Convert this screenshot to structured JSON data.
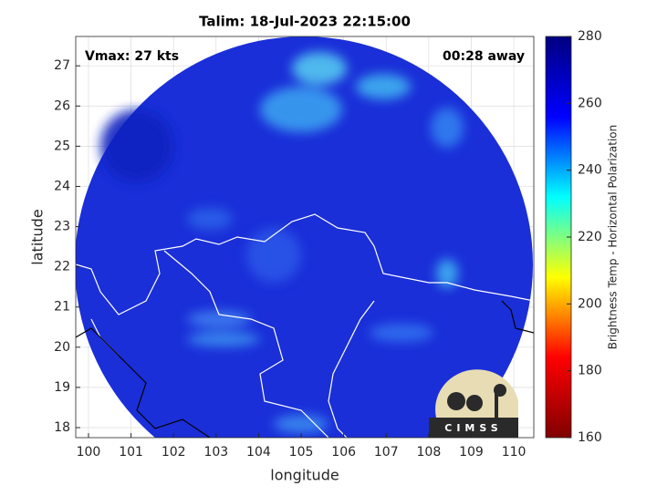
{
  "chart_data": {
    "type": "map",
    "title": "Talim: 18-Jul-2023 22:15:00",
    "xlabel": "longitude",
    "ylabel": "latitude",
    "xlim": [
      99.7,
      110.47
    ],
    "ylim": [
      17.75,
      27.73
    ],
    "xticks": [
      100,
      101,
      102,
      103,
      104,
      105,
      106,
      107,
      108,
      109,
      110
    ],
    "yticks": [
      18,
      19,
      20,
      21,
      22,
      23,
      24,
      25,
      26,
      27
    ],
    "grid": true,
    "annotations": [
      "Vmax: 27 kts",
      "00:28 away"
    ],
    "logo": "CIMSS",
    "colorbar": {
      "label": "Brightness Temp - Horizontal Polarization",
      "lim": [
        160,
        280
      ],
      "ticks": [
        160,
        180,
        200,
        220,
        240,
        260,
        280
      ],
      "colors": [
        "#800000",
        "#ff0000",
        "#ffff00",
        "#00ffff",
        "#0000ff",
        "#000080"
      ]
    }
  }
}
